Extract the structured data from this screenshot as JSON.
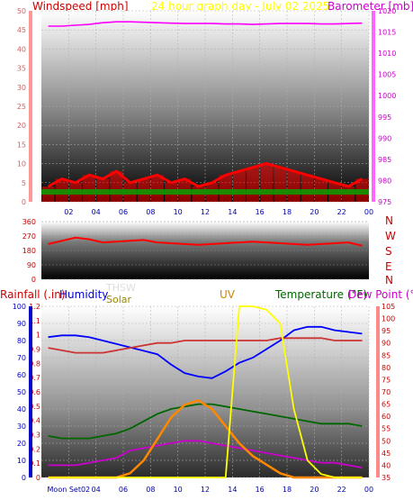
{
  "header": {
    "wind_label": "Windspeed [mph]",
    "title": "24 hour graph day - July 02 2025",
    "baro_label": "Barometer [mb]"
  },
  "colors": {
    "wind": "#ff0000",
    "gust_green": "#00aa00",
    "dir": "#ff0000",
    "baro": "#ff00ff",
    "title": "#ffff00",
    "humidity": "#0000ff",
    "temperature": "#006600",
    "dewpoint": "#cc00cc",
    "uv": "#ffff00",
    "solar": "#ff8800",
    "moon": "#c8c8c8",
    "rain": "#cc0000",
    "thsw": "#cc3333"
  },
  "labels": {
    "compass": [
      "N",
      "W",
      "S",
      "E",
      "N"
    ],
    "rainfall": "Rainfall (.in)",
    "humidity": "Humidity",
    "thsw": "THSW",
    "solar": "Solar",
    "uv": "UV",
    "temperature": "Temperature (°F)",
    "dewpoint": "Dew Point (°F)",
    "moon": "Moon Set02"
  },
  "chart_data": [
    {
      "type": "line",
      "title": "24 hour graph day - July 02 2025",
      "x_ticks": [
        "02",
        "04",
        "06",
        "08",
        "10",
        "12",
        "14",
        "16",
        "18",
        "20",
        "22",
        "00"
      ],
      "left_axis": {
        "label": "Windspeed [mph]",
        "ticks": [
          0,
          5,
          10,
          15,
          20,
          25,
          30,
          35,
          40,
          45,
          50
        ],
        "ylim": [
          0,
          50
        ]
      },
      "right_axis": {
        "label": "Barometer [mb]",
        "ticks": [
          975,
          980,
          985,
          990,
          995,
          1000,
          1005,
          1010,
          1015,
          1020
        ],
        "ylim": [
          975,
          1020
        ]
      },
      "series": [
        {
          "name": "Windspeed [mph]",
          "values": [
            4,
            6,
            5,
            7,
            6,
            8,
            5,
            6,
            7,
            5,
            6,
            4,
            5,
            7,
            8,
            9,
            10,
            9,
            8,
            7,
            6,
            5,
            4,
            6
          ]
        },
        {
          "name": "Barometer [mb]",
          "values": [
            1016.4,
            1016.4,
            1016.6,
            1016.8,
            1017.2,
            1017.4,
            1017.4,
            1017.3,
            1017.2,
            1017.1,
            1017.0,
            1017.0,
            1017.0,
            1016.9,
            1016.9,
            1016.8,
            1016.9,
            1017.0,
            1017.0,
            1017.0,
            1016.9,
            1016.9,
            1017.0,
            1017.1
          ]
        }
      ]
    },
    {
      "type": "line",
      "title": "",
      "y_ticks": [
        0,
        90,
        180,
        270,
        360
      ],
      "ylim": [
        0,
        360
      ],
      "series": [
        {
          "name": "",
          "values": [
            220,
            240,
            260,
            250,
            230,
            235,
            240,
            245,
            230,
            225,
            220,
            215,
            220,
            225,
            230,
            235,
            230,
            225,
            220,
            215,
            220,
            225,
            230,
            210
          ]
        }
      ]
    },
    {
      "type": "line",
      "title": "",
      "x_ticks": [
        "Moon Set02",
        "04",
        "06",
        "08",
        "10",
        "12",
        "14",
        "16",
        "18",
        "20",
        "22",
        "00"
      ],
      "humidity_axis": {
        "label": "Humidity",
        "ticks": [
          0,
          10,
          20,
          30,
          40,
          50,
          60,
          70,
          80,
          90,
          100
        ],
        "ylim": [
          0,
          100
        ]
      },
      "rain_axis": {
        "label": "Rainfall (.in)",
        "ticks": [
          0,
          0.1,
          0.2,
          0.3,
          0.4,
          0.5,
          0.6,
          0.7,
          0.8,
          0.9,
          1,
          1.1,
          1.2
        ],
        "ylim": [
          0,
          1.2
        ]
      },
      "temp_axis": {
        "label": "Temperature (°F)",
        "ticks": [
          35,
          40,
          45,
          50,
          55,
          60,
          65,
          70,
          75,
          80,
          85,
          90,
          95,
          100,
          105
        ],
        "ylim": [
          35,
          105
        ]
      },
      "series": [
        {
          "name": "Humidity",
          "values": [
            82,
            83,
            83,
            82,
            80,
            78,
            76,
            74,
            72,
            66,
            61,
            59,
            58,
            62,
            67,
            70,
            75,
            80,
            86,
            88,
            88,
            86,
            85,
            84
          ]
        },
        {
          "name": "Temperature (°F)",
          "values": [
            52,
            51,
            51,
            51,
            52,
            53,
            55,
            58,
            61,
            63,
            64,
            65,
            65,
            64,
            63,
            62,
            61,
            60,
            59,
            58,
            57,
            57,
            57,
            56
          ]
        },
        {
          "name": "Dew Point (°F)",
          "values": [
            40,
            40,
            40,
            41,
            42,
            43,
            46,
            47,
            48,
            49,
            50,
            50,
            49,
            48,
            47,
            46,
            45,
            44,
            43,
            42,
            41,
            41,
            40,
            39
          ]
        },
        {
          "name": "THSW",
          "values": [
            88,
            87,
            86,
            86,
            86,
            87,
            88,
            89,
            90,
            90,
            91,
            91,
            91,
            91,
            91,
            91,
            91,
            92,
            92,
            92,
            92,
            91,
            91,
            91
          ]
        },
        {
          "name": "Solar",
          "values": [
            0,
            0,
            0,
            0,
            0,
            0,
            1,
            4,
            9,
            14,
            17,
            18,
            16,
            12,
            8,
            5,
            3,
            1,
            0,
            0,
            0,
            0,
            0,
            0
          ]
        },
        {
          "name": "UV",
          "values": [
            0,
            0,
            0,
            0,
            0,
            0,
            0,
            0,
            0,
            0,
            0,
            0,
            0,
            0,
            100,
            100,
            98,
            90,
            40,
            10,
            2,
            0,
            0,
            0
          ]
        }
      ]
    }
  ]
}
